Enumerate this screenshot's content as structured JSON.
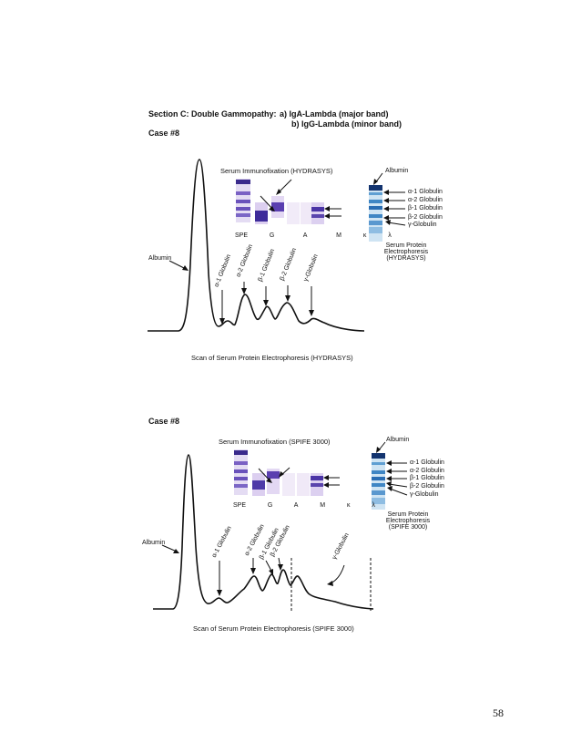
{
  "header": {
    "section": "Section C: Double Gammopathy:",
    "band_a": "a) IgA-Lambda (major band)",
    "band_b": "b) IgG-Lambda (minor band)"
  },
  "figures": [
    {
      "case": "Case #8",
      "ife_title": "Serum Immunofixation (HYDRASYS)",
      "lanes": [
        "SPE",
        "G",
        "A",
        "M",
        "κ",
        "λ"
      ],
      "albumin": "Albumin",
      "peaks": [
        "α-1 Globulin",
        "α-2 Globulin",
        "β-1 Globulin",
        "β-2 Globulin",
        "γ-Globulin"
      ],
      "spe_bands": [
        "Albumin",
        "α-1 Globulin",
        "α-2 Globulin",
        "β-1 Globulin",
        "β-2 Globulin",
        "γ-Globulin"
      ],
      "spe_caption": [
        "Serum Protein",
        "Electrophoresis",
        "(HYDRASYS)"
      ],
      "scan_caption": "Scan of Serum Protein Electrophoresis (HYDRASYS)"
    },
    {
      "case": "Case #8",
      "ife_title": "Serum Immunofixation (SPIFE 3000)",
      "lanes": [
        "SPE",
        "G",
        "A",
        "M",
        "κ",
        "λ"
      ],
      "albumin": "Albumin",
      "peaks": [
        "α-1 Globulin",
        "α-2 Globulin",
        "β-1 Globulin",
        "β-2 Globulin",
        "γ-Globulin"
      ],
      "spe_bands": [
        "Albumin",
        "α-1 Globulin",
        "α-2 Globulin",
        "β-1 Globulin",
        "β-2 Globulin",
        "γ-Globulin"
      ],
      "spe_caption": [
        "Serum Protein",
        "Electrophoresis",
        "(SPIFE 3000)"
      ],
      "scan_caption": "Scan of Serum Protein Electrophoresis (SPIFE 3000)"
    }
  ],
  "page_number": "58",
  "colors": {
    "gel_purple": "#5a3fa8",
    "gel_light": "#d9cdef",
    "spe_blue": "#3f86c4",
    "spe_dark": "#13346f"
  }
}
